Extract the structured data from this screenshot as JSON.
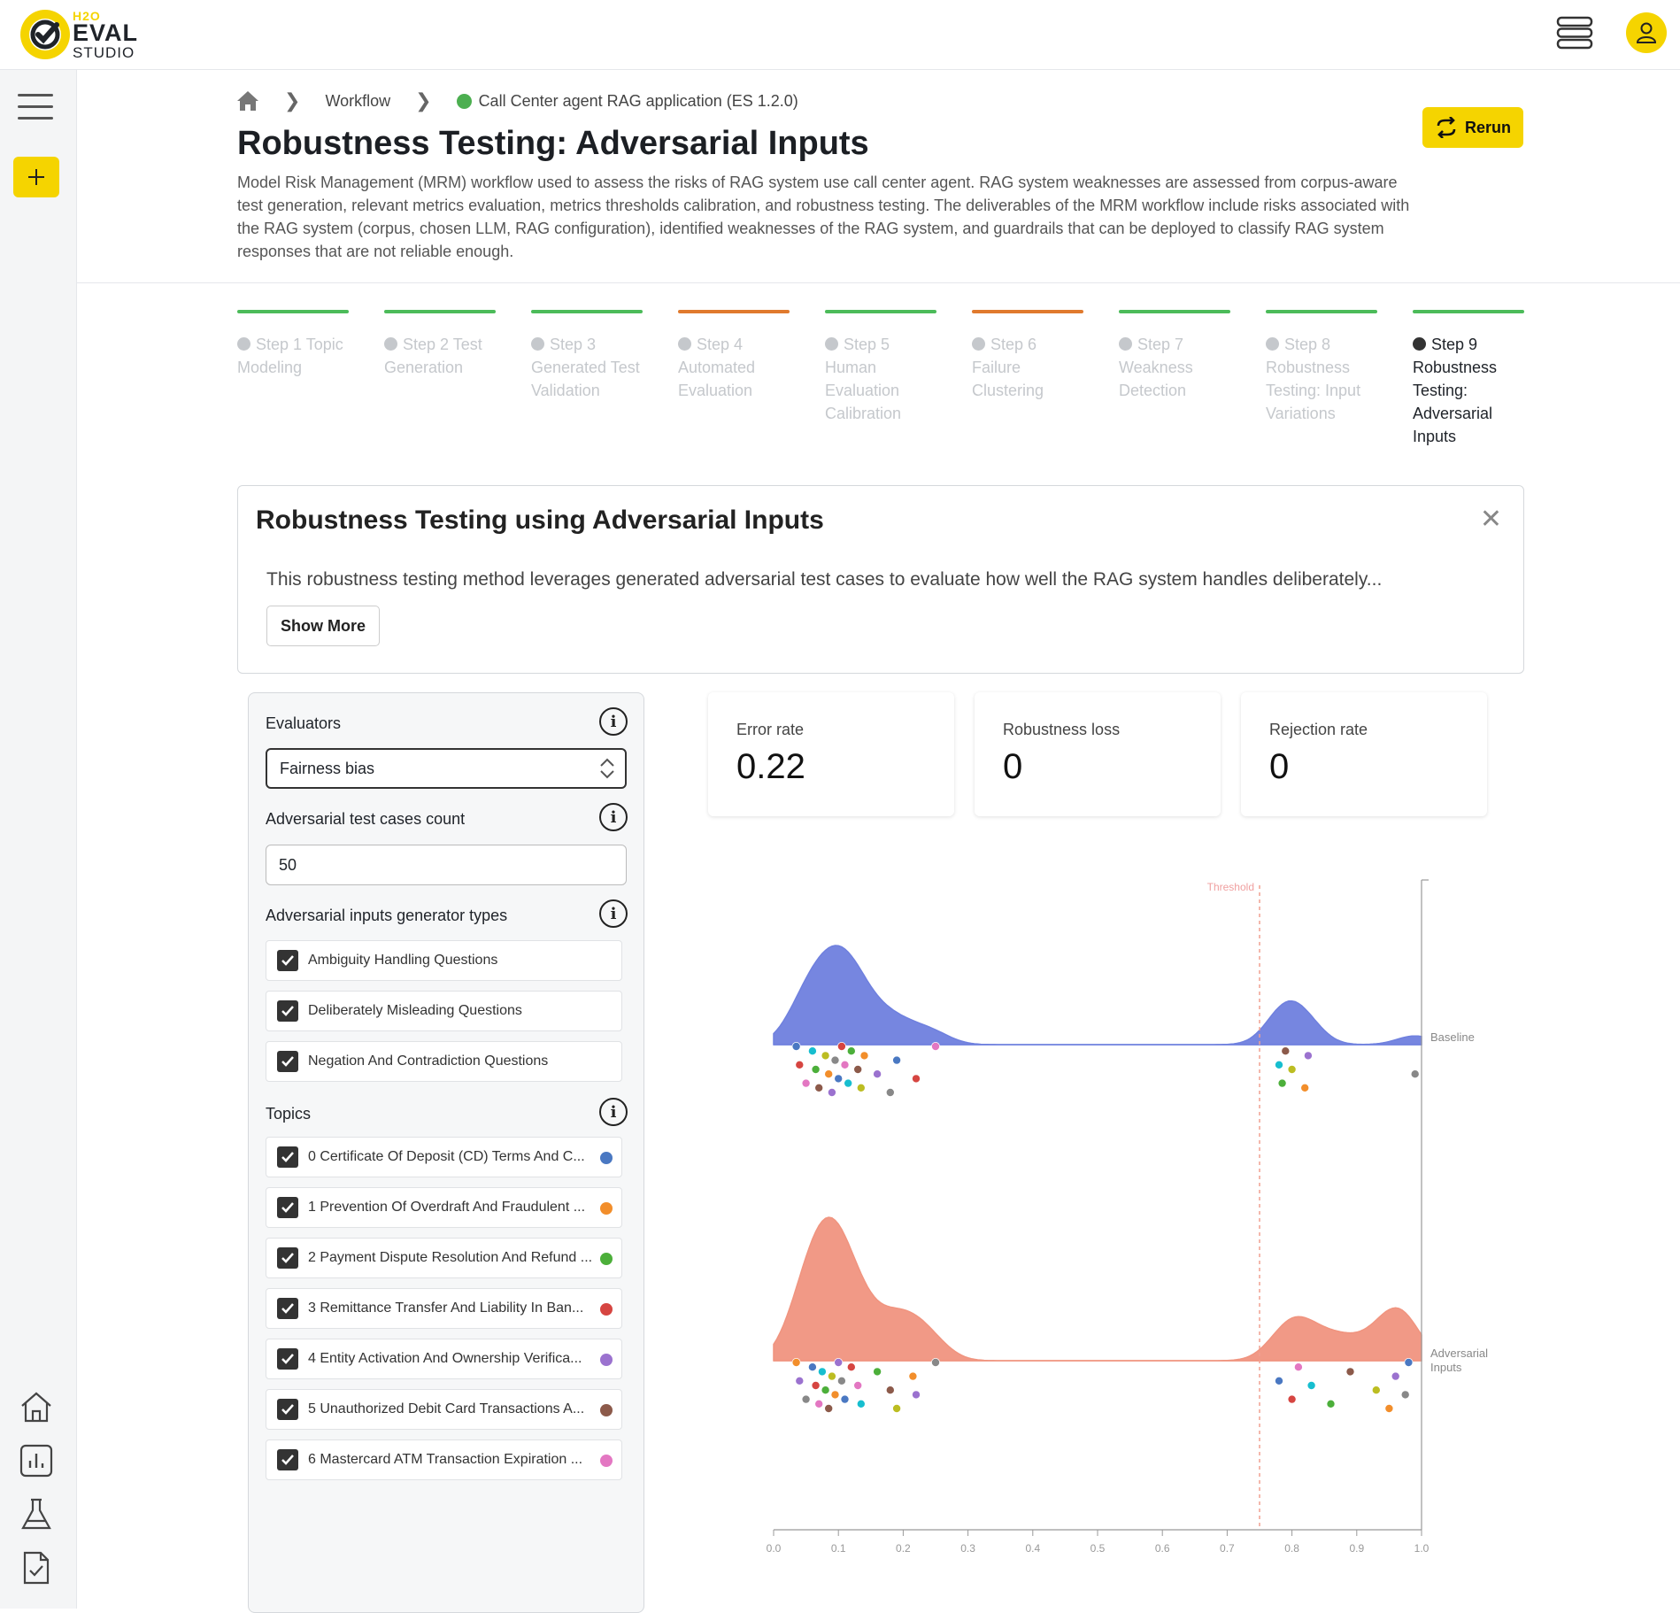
{
  "app": {
    "logo_h2o": "H2O",
    "logo_eval": "EVAL",
    "logo_studio": "STUDIO",
    "accent_color": "#f5d400"
  },
  "breadcrumb": {
    "items": [
      "Workflow",
      "Call Center agent RAG application (ES 1.2.0)"
    ]
  },
  "header": {
    "title": "Robustness Testing: Adversarial Inputs",
    "description": "Model Risk Management (MRM) workflow used to assess the risks of RAG system use call center agent. RAG system weaknesses are assessed from corpus-aware test generation, relevant metrics evaluation, metrics thresholds calibration, and robustness testing. The deliverables of the MRM workflow include risks associated with the RAG system (corpus, chosen LLM, RAG configuration), identified weaknesses of the RAG system, and guardrails that can be deployed to classify RAG system responses that are not reliable enough.",
    "rerun_label": "Rerun"
  },
  "steps": [
    {
      "label": "Step 1 Topic Modeling",
      "color": "#4cbb5a"
    },
    {
      "label": "Step 2 Test Generation",
      "color": "#4cbb5a"
    },
    {
      "label": "Step 3 Generated Test Validation",
      "color": "#4cbb5a"
    },
    {
      "label": "Step 4 Automated Evaluation",
      "color": "#e07a2e"
    },
    {
      "label": "Step 5 Human Evaluation Calibration",
      "color": "#4cbb5a"
    },
    {
      "label": "Step 6 Failure Clustering",
      "color": "#e07a2e"
    },
    {
      "label": "Step 7 Weakness Detection",
      "color": "#4cbb5a"
    },
    {
      "label": "Step 8 Robustness Testing: Input Variations",
      "color": "#4cbb5a"
    },
    {
      "label": "Step 9 Robustness Testing: Adversarial Inputs",
      "color": "#4cbb5a"
    }
  ],
  "info_card": {
    "title": "Robustness Testing using Adversarial Inputs",
    "text": "This robustness testing method leverages generated adversarial test cases to evaluate how well the RAG system handles deliberately...",
    "show_more": "Show More"
  },
  "panel": {
    "evaluators_label": "Evaluators",
    "evaluator_value": "Fairness bias",
    "count_label": "Adversarial test cases count",
    "count_value": "50",
    "generator_label": "Adversarial inputs generator types",
    "generators": [
      "Ambiguity Handling Questions",
      "Deliberately Misleading Questions",
      "Negation And Contradiction Questions"
    ],
    "topics_label": "Topics",
    "topics": [
      {
        "label": "0 Certificate Of Deposit (CD) Terms And C...",
        "color": "#4a78c2"
      },
      {
        "label": "1 Prevention Of Overdraft And Fraudulent ...",
        "color": "#f28e2b"
      },
      {
        "label": "2 Payment Dispute Resolution And Refund ...",
        "color": "#4caf3a"
      },
      {
        "label": "3 Remittance Transfer And Liability In Ban...",
        "color": "#d64541"
      },
      {
        "label": "4 Entity Activation And Ownership Verifica...",
        "color": "#9b72cf"
      },
      {
        "label": "5 Unauthorized Debit Card Transactions A...",
        "color": "#8c5a4a"
      },
      {
        "label": "6 Mastercard ATM Transaction Expiration ...",
        "color": "#e377c2"
      }
    ]
  },
  "metrics": [
    {
      "label": "Error rate",
      "value": "0.22"
    },
    {
      "label": "Robustness loss",
      "value": "0"
    },
    {
      "label": "Rejection rate",
      "value": "0"
    }
  ],
  "chart_data": {
    "type": "scatter",
    "title": "",
    "xlabel": "",
    "ylabel": "",
    "xlim": [
      0.0,
      1.0
    ],
    "x_ticks": [
      "0.0",
      "0.1",
      "0.2",
      "0.3",
      "0.4",
      "0.5",
      "0.6",
      "0.7",
      "0.8",
      "0.9",
      "1.0"
    ],
    "threshold": {
      "label": "Threshold",
      "x": 0.75
    },
    "series": [
      {
        "name": "Baseline",
        "density_color": "#6f80de",
        "x": [
          0.035,
          0.04,
          0.05,
          0.06,
          0.065,
          0.07,
          0.08,
          0.085,
          0.09,
          0.095,
          0.1,
          0.105,
          0.11,
          0.115,
          0.12,
          0.13,
          0.135,
          0.14,
          0.16,
          0.18,
          0.19,
          0.22,
          0.25,
          0.78,
          0.785,
          0.79,
          0.8,
          0.82,
          0.825,
          0.99
        ]
      },
      {
        "name": "Adversarial Inputs",
        "density_color": "#f0947f",
        "x": [
          0.035,
          0.04,
          0.05,
          0.06,
          0.065,
          0.07,
          0.075,
          0.08,
          0.085,
          0.09,
          0.095,
          0.1,
          0.105,
          0.11,
          0.12,
          0.13,
          0.135,
          0.16,
          0.18,
          0.19,
          0.215,
          0.22,
          0.25,
          0.78,
          0.8,
          0.81,
          0.83,
          0.86,
          0.89,
          0.93,
          0.95,
          0.96,
          0.975,
          0.98
        ]
      }
    ],
    "grid": false
  }
}
